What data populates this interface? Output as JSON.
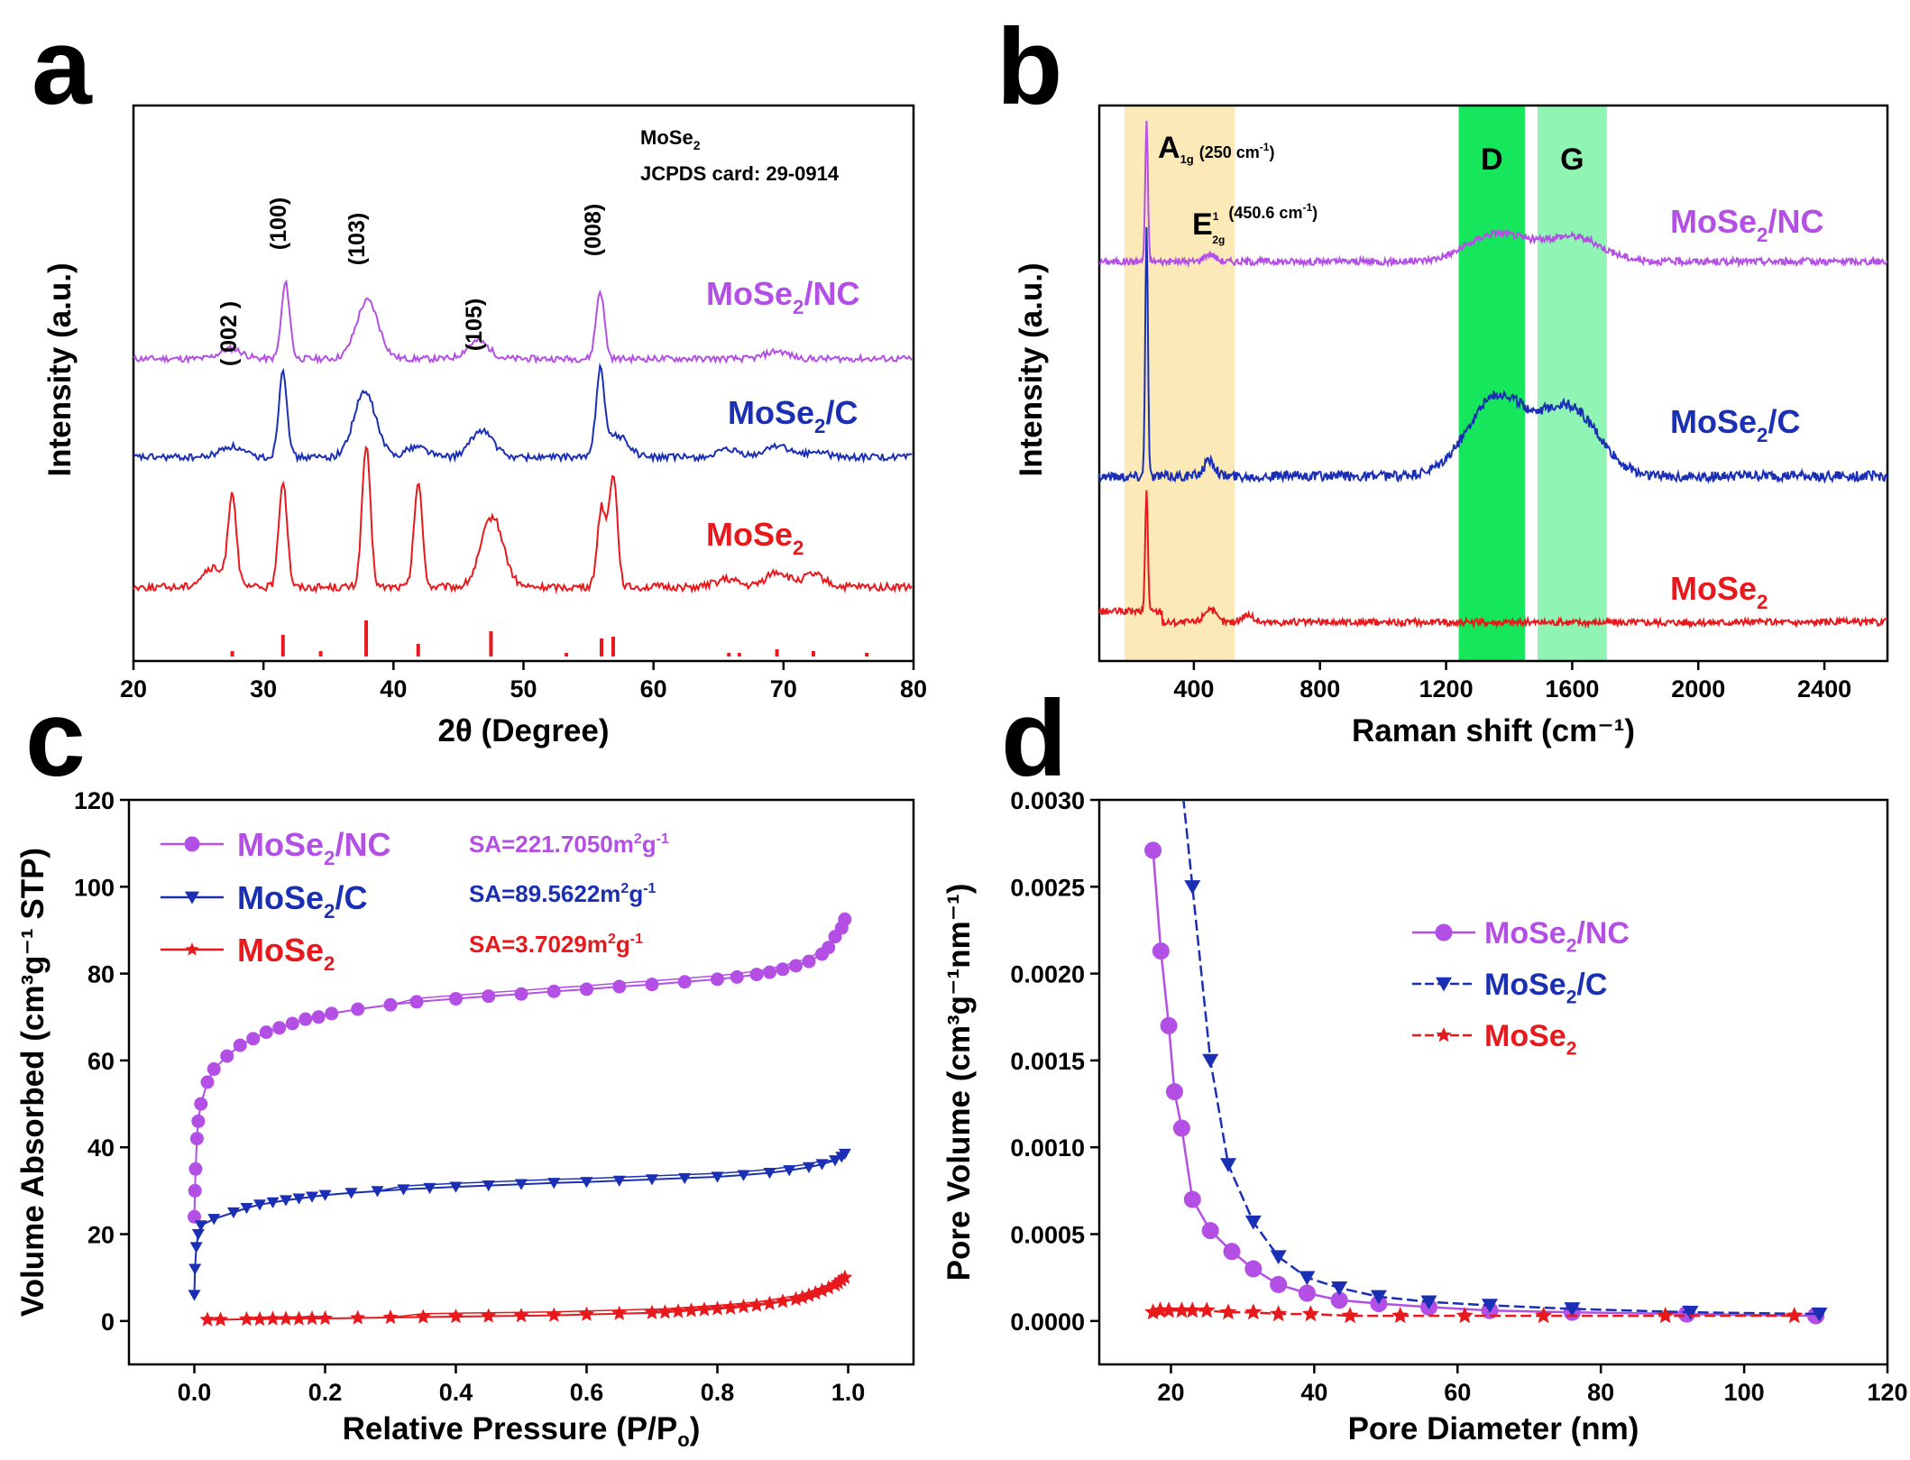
{
  "panels": {
    "a": {
      "label": "a"
    },
    "b": {
      "label": "b"
    },
    "c": {
      "label": "c"
    },
    "d": {
      "label": "d"
    }
  },
  "colors": {
    "MoSe2_NC": "#b44fe6",
    "MoSe2_C": "#1b2fb5",
    "MoSe2": "#e8191d",
    "axis": "#000000",
    "band_A": "#fbe9b7",
    "band_D": "#15e65c",
    "band_G": "#8ff4b4"
  },
  "chart_data": [
    {
      "id": "a",
      "type": "line",
      "xlabel": "2θ (Degree)",
      "ylabel": "Intensity (a.u.)",
      "xlim": [
        20,
        80
      ],
      "xticks": [
        "20",
        "30",
        "40",
        "50",
        "60",
        "70",
        "80"
      ],
      "series": [
        {
          "name": "MoSe2/NC",
          "key": "MoSe2_NC",
          "peaks": [
            [
              27.5,
              0.8
            ],
            [
              31.7,
              6.0
            ],
            [
              38.0,
              4.6
            ],
            [
              46.5,
              1.4
            ],
            [
              55.9,
              5.4
            ],
            [
              69.5,
              0.6
            ]
          ],
          "baseline": 0.3
        },
        {
          "name": "MoSe2/C",
          "key": "MoSe2_C",
          "peaks": [
            [
              27.5,
              0.8
            ],
            [
              31.5,
              6.5
            ],
            [
              37.8,
              4.8
            ],
            [
              41.8,
              0.8
            ],
            [
              46.8,
              2.0
            ],
            [
              55.9,
              6.2
            ],
            [
              57.2,
              1.6
            ],
            [
              65.8,
              0.5
            ],
            [
              69.5,
              0.9
            ],
            [
              72.5,
              0.4
            ]
          ],
          "baseline": 0.2
        },
        {
          "name": "MoSe2",
          "key": "MoSe2",
          "peaks": [
            [
              26.1,
              1.2
            ],
            [
              27.6,
              6.0
            ],
            [
              31.5,
              7.0
            ],
            [
              37.9,
              9.2
            ],
            [
              41.9,
              6.8
            ],
            [
              47.6,
              4.6
            ],
            [
              56.0,
              5.2
            ],
            [
              56.9,
              7.4
            ],
            [
              65.6,
              0.5
            ],
            [
              69.5,
              1.0
            ],
            [
              72.3,
              0.8
            ]
          ],
          "baseline": 0.0
        }
      ],
      "reference": {
        "positions": [
          27.6,
          31.5,
          34.4,
          37.9,
          41.9,
          47.5,
          53.3,
          56.0,
          56.9,
          65.8,
          66.6,
          69.5,
          72.3,
          76.4
        ],
        "heights": [
          0.15,
          0.6,
          0.15,
          1.0,
          0.35,
          0.7,
          0.1,
          0.5,
          0.55,
          0.1,
          0.1,
          0.2,
          0.15,
          0.1
        ]
      },
      "peak_labels": [
        "( 002 )",
        "(100)",
        "(103)",
        "(105)",
        "(008)"
      ],
      "annotation": {
        "line1_main": "MoSe",
        "line1_sub": "2",
        "line2": "JCPDS card: 29-0914"
      },
      "legend_labels": [
        {
          "key": "MoSe2_NC",
          "main": "MoSe",
          "sub": "2",
          "rest": "/NC"
        },
        {
          "key": "MoSe2_C",
          "main": "MoSe",
          "sub": "2",
          "rest": "/C"
        },
        {
          "key": "MoSe2",
          "main": "MoSe",
          "sub": "2",
          "rest": ""
        }
      ]
    },
    {
      "id": "b",
      "type": "line",
      "xlabel": "Raman shift (cm⁻¹)",
      "ylabel": "Intensity (a.u.)",
      "xlim": [
        100,
        2600
      ],
      "xticks": [
        "400",
        "800",
        "1200",
        "1600",
        "2000",
        "2400"
      ],
      "bands": [
        {
          "name": "A",
          "from": 180,
          "to": 530
        },
        {
          "name": "D",
          "from": 1240,
          "to": 1450
        },
        {
          "name": "G",
          "from": 1490,
          "to": 1710
        }
      ],
      "band_labels": [
        "D",
        "G"
      ],
      "mode_labels": {
        "a1g": {
          "main": "A",
          "sub": "1g",
          "value": "(250 cm",
          "sup": "-1",
          "close": ")"
        },
        "e2g": {
          "main": "E",
          "sup1": "1",
          "sub": "2g",
          "value": "(450.6 cm",
          "sup": "-1",
          "close": ")"
        }
      },
      "series": [
        {
          "name": "MoSe2/NC",
          "key": "MoSe2_NC",
          "peaks": [
            [
              250,
              9.0
            ],
            [
              450,
              0.5
            ],
            [
              1360,
              1.8
            ],
            [
              1600,
              1.6
            ]
          ]
        },
        {
          "name": "MoSe2/C",
          "key": "MoSe2_C",
          "peaks": [
            [
              250,
              11.0
            ],
            [
              450,
              0.7
            ],
            [
              1360,
              3.5
            ],
            [
              1590,
              3.0
            ]
          ]
        },
        {
          "name": "MoSe2",
          "key": "MoSe2",
          "peaks": [
            [
              250,
              8.0
            ],
            [
              450,
              0.9
            ],
            [
              570,
              0.5
            ]
          ]
        }
      ],
      "legend_labels": [
        {
          "key": "MoSe2_NC",
          "main": "MoSe",
          "sub": "2",
          "rest": "/NC"
        },
        {
          "key": "MoSe2_C",
          "main": "MoSe",
          "sub": "2",
          "rest": "/C"
        },
        {
          "key": "MoSe2",
          "main": "MoSe",
          "sub": "2",
          "rest": ""
        }
      ]
    },
    {
      "id": "c",
      "type": "line",
      "xlabel": "Relative Pressure (P/P",
      "xlabel_sub": "o",
      "xlabel_close": ")",
      "ylabel": "Volume Absorbed (cm³g⁻¹ STP)",
      "xlim": [
        -0.1,
        1.1
      ],
      "ylim": [
        -10,
        120
      ],
      "xticks": [
        0.0,
        0.2,
        0.4,
        0.6,
        0.8,
        1.0
      ],
      "xtick_labels": [
        "0.0",
        "0.2",
        "0.4",
        "0.6",
        "0.8",
        "1.0"
      ],
      "yticks": [
        0,
        20,
        40,
        60,
        80,
        100,
        120
      ],
      "ytick_labels": [
        "0",
        "20",
        "40",
        "60",
        "80",
        "100",
        "120"
      ],
      "series": [
        {
          "name": "MoSe2/NC",
          "key": "MoSe2_NC",
          "marker": "circle",
          "x": [
            0.0,
            0.001,
            0.002,
            0.004,
            0.006,
            0.01,
            0.02,
            0.03,
            0.05,
            0.07,
            0.09,
            0.11,
            0.13,
            0.15,
            0.17,
            0.19,
            0.21,
            0.25,
            0.3,
            0.34,
            0.4,
            0.45,
            0.5,
            0.55,
            0.6,
            0.65,
            0.7,
            0.75,
            0.8,
            0.83,
            0.86,
            0.88,
            0.9,
            0.92,
            0.94,
            0.96,
            0.97,
            0.98,
            0.99,
            0.995
          ],
          "y": [
            24,
            30,
            35,
            42,
            46,
            50,
            55,
            58,
            61,
            63.5,
            65,
            66.5,
            67.5,
            68.5,
            69.5,
            70,
            70.8,
            71.8,
            72.8,
            73.5,
            74.2,
            74.8,
            75.3,
            75.9,
            76.4,
            77,
            77.5,
            78.1,
            78.7,
            79.2,
            79.8,
            80.3,
            81,
            81.8,
            82.8,
            84.5,
            86,
            88.5,
            90.5,
            92.5
          ]
        },
        {
          "name": "MoSe2/C",
          "key": "MoSe2_C",
          "marker": "triangle",
          "x": [
            0.0,
            0.001,
            0.003,
            0.006,
            0.01,
            0.03,
            0.06,
            0.08,
            0.1,
            0.12,
            0.14,
            0.16,
            0.18,
            0.2,
            0.24,
            0.28,
            0.32,
            0.36,
            0.4,
            0.45,
            0.5,
            0.55,
            0.6,
            0.65,
            0.7,
            0.75,
            0.8,
            0.84,
            0.88,
            0.91,
            0.94,
            0.96,
            0.98,
            0.99,
            0.995
          ],
          "y": [
            6,
            12,
            17,
            20,
            22,
            23.5,
            25,
            26,
            26.8,
            27.3,
            27.8,
            28.2,
            28.6,
            29,
            29.5,
            29.9,
            30.3,
            30.6,
            30.9,
            31.2,
            31.5,
            31.8,
            32,
            32.3,
            32.6,
            32.9,
            33.2,
            33.6,
            34.1,
            34.7,
            35.4,
            36.1,
            37,
            37.8,
            38.5
          ]
        },
        {
          "name": "MoSe2",
          "key": "MoSe2",
          "marker": "star",
          "x": [
            0.02,
            0.04,
            0.08,
            0.1,
            0.12,
            0.14,
            0.16,
            0.18,
            0.2,
            0.25,
            0.3,
            0.35,
            0.4,
            0.45,
            0.5,
            0.55,
            0.6,
            0.65,
            0.7,
            0.72,
            0.74,
            0.76,
            0.78,
            0.8,
            0.82,
            0.84,
            0.86,
            0.88,
            0.9,
            0.92,
            0.93,
            0.94,
            0.95,
            0.96,
            0.97,
            0.98,
            0.985,
            0.99,
            0.995
          ],
          "y": [
            0.3,
            0.3,
            0.4,
            0.4,
            0.5,
            0.5,
            0.5,
            0.6,
            0.6,
            0.7,
            0.8,
            0.9,
            1.0,
            1.1,
            1.2,
            1.3,
            1.5,
            1.7,
            1.9,
            2.0,
            2.2,
            2.4,
            2.6,
            2.8,
            3.0,
            3.3,
            3.6,
            4.0,
            4.5,
            5.0,
            5.4,
            5.9,
            6.4,
            7.0,
            7.6,
            8.3,
            8.8,
            9.4,
            10.0
          ]
        }
      ],
      "legend": [
        {
          "key": "MoSe2_NC",
          "marker": "circle",
          "main": "MoSe",
          "sub": "2",
          "rest": "/NC"
        },
        {
          "key": "MoSe2_C",
          "marker": "triangle",
          "main": "MoSe",
          "sub": "2",
          "rest": "/C"
        },
        {
          "key": "MoSe2",
          "marker": "star",
          "main": "MoSe",
          "sub": "2",
          "rest": ""
        }
      ],
      "sa_labels": [
        {
          "key": "MoSe2_NC",
          "text": "SA=221.7050m",
          "sup1": "2",
          "mid": "g",
          "sup2": "-1"
        },
        {
          "key": "MoSe2_C",
          "text": "SA=89.5622m",
          "sup1": "2",
          "mid": "g",
          "sup2": "-1"
        },
        {
          "key": "MoSe2",
          "text": "SA=3.7029m",
          "sup1": "2",
          "mid": "g",
          "sup2": "-1"
        }
      ]
    },
    {
      "id": "d",
      "type": "line",
      "xlabel": "Pore Diameter (nm)",
      "ylabel": "Pore Volume (cm³g⁻¹nm⁻¹)",
      "xlim": [
        10,
        120
      ],
      "ylim": [
        -0.00025,
        0.003
      ],
      "xticks": [
        20,
        40,
        60,
        80,
        100,
        120
      ],
      "xtick_labels": [
        "20",
        "40",
        "60",
        "80",
        "100",
        "120"
      ],
      "yticks": [
        0,
        0.0005,
        0.001,
        0.0015,
        0.002,
        0.0025,
        0.003
      ],
      "ytick_labels": [
        "0.0000",
        "0.0005",
        "0.0010",
        "0.0015",
        "0.0020",
        "0.0025",
        "0.0030"
      ],
      "series": [
        {
          "name": "MoSe2/NC",
          "key": "MoSe2_NC",
          "marker": "circle",
          "x": [
            17.5,
            18.6,
            19.7,
            20.5,
            21.5,
            23.0,
            25.5,
            28.5,
            31.5,
            35.0,
            39.0,
            43.5,
            49.0,
            56.0,
            64.5,
            76.0,
            92.0,
            110.0
          ],
          "y": [
            0.00271,
            0.00213,
            0.0017,
            0.00132,
            0.00111,
            0.0007,
            0.00052,
            0.0004,
            0.0003,
            0.00021,
            0.00016,
            0.00012,
            0.0001,
            8e-05,
            6e-05,
            5e-05,
            4e-05,
            3e-05
          ]
        },
        {
          "name": "MoSe2/C",
          "key": "MoSe2_C",
          "marker": "triangle",
          "x": [
            21.5,
            23.0,
            25.5,
            28.0,
            31.5,
            35.0,
            39.0,
            43.5,
            49.0,
            56.0,
            64.5,
            76.0,
            92.5,
            110.5
          ],
          "y": [
            0.0031,
            0.0025,
            0.0015,
            0.0009,
            0.00057,
            0.00037,
            0.00025,
            0.00019,
            0.00014,
            0.00011,
            9e-05,
            7e-05,
            5e-05,
            4e-05
          ]
        },
        {
          "name": "MoSe2",
          "key": "MoSe2",
          "marker": "star",
          "x": [
            17.5,
            18.5,
            19.7,
            21.5,
            23.0,
            25.0,
            28.0,
            31.5,
            35.0,
            39.5,
            45.0,
            52.0,
            61.0,
            72.0,
            89.0,
            107.0
          ],
          "y": [
            5e-05,
            6e-05,
            6e-05,
            6e-05,
            6e-05,
            6e-05,
            5e-05,
            5e-05,
            4e-05,
            4e-05,
            3e-05,
            3e-05,
            3e-05,
            3e-05,
            3e-05,
            3e-05
          ]
        }
      ],
      "legend": [
        {
          "key": "MoSe2_NC",
          "marker": "circle",
          "main": "MoSe",
          "sub": "2",
          "rest": "/NC"
        },
        {
          "key": "MoSe2_C",
          "marker": "triangle",
          "main": "MoSe",
          "sub": "2",
          "rest": "/C"
        },
        {
          "key": "MoSe2",
          "marker": "star",
          "main": "MoSe",
          "sub": "2",
          "rest": ""
        }
      ]
    }
  ]
}
